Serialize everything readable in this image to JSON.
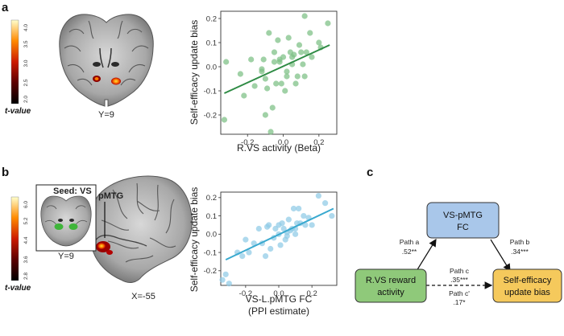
{
  "panel_a": {
    "letter": "a",
    "colorbar": {
      "title": "t-value",
      "ticks": [
        "4.0",
        "3.5",
        "3.0",
        "2.5",
        "2.0"
      ]
    },
    "brain_label": "Y=9"
  },
  "panel_b": {
    "letter": "b",
    "colorbar": {
      "title": "t-value",
      "ticks": [
        "6.0",
        "5.2",
        "4.4",
        "3.6",
        "2.8"
      ]
    },
    "seed_label": "Seed: VS",
    "inset_brain_label": "Y=9",
    "region_label": "pMTG",
    "brain_label": "X=-55"
  },
  "panel_c": {
    "letter": "c",
    "box_x": {
      "line1": "R.VS reward",
      "line2": "activity"
    },
    "box_m": {
      "line1": "VS-pMTG",
      "line2": "FC"
    },
    "box_y": {
      "line1": "Self-efficacy",
      "line2": "update bias"
    },
    "path_a": {
      "name": "Path a",
      "value": ".52**"
    },
    "path_b": {
      "name": "Path b",
      "value": ".34***"
    },
    "path_c": {
      "name": "Path c",
      "value": ".35***"
    },
    "path_c_prime": {
      "name": "Path c'",
      "value": ".17*"
    },
    "colors": {
      "x_fill": "#8fc97a",
      "m_fill": "#a9c7ea",
      "y_fill": "#f5c95c"
    }
  },
  "chart_data": [
    {
      "type": "scatter",
      "name": "scatter-a",
      "xlabel": "R.VS activity (Beta)",
      "ylabel": "Self-efficacy update bias",
      "xlim": [
        -0.35,
        0.3
      ],
      "ylim": [
        -0.28,
        0.23
      ],
      "xticks": [
        -0.2,
        0.0,
        0.2
      ],
      "xtick_labels": [
        "-0.2",
        "0.0",
        "0.2"
      ],
      "yticks": [
        -0.2,
        -0.1,
        0.0,
        0.1,
        0.2
      ],
      "ytick_labels": [
        "-0.2",
        "-0.1",
        "0.0",
        "0.1",
        "0.2"
      ],
      "point_color": "#7bbf84",
      "line_color": "#2e8b44",
      "fit_line": {
        "x": [
          -0.33,
          0.26
        ],
        "y": [
          -0.11,
          0.09
        ]
      },
      "points": {
        "x": [
          -0.33,
          -0.32,
          -0.24,
          -0.22,
          -0.18,
          -0.16,
          -0.12,
          -0.11,
          -0.1,
          -0.08,
          -0.07,
          -0.06,
          -0.05,
          -0.05,
          -0.04,
          -0.03,
          -0.02,
          -0.02,
          -0.01,
          0.0,
          0.01,
          0.02,
          0.02,
          0.03,
          0.04,
          0.05,
          0.06,
          0.07,
          0.08,
          0.09,
          0.1,
          0.11,
          0.12,
          0.12,
          0.13,
          0.15,
          0.16,
          0.2,
          0.21,
          0.25,
          -0.12,
          -0.09,
          0.05,
          -0.1
        ],
        "y": [
          -0.22,
          0.02,
          -0.03,
          -0.12,
          0.03,
          -0.08,
          -0.02,
          0.03,
          -0.05,
          0.14,
          -0.27,
          -0.17,
          0.02,
          0.06,
          -0.07,
          0.11,
          0.03,
          0.02,
          -0.07,
          0.04,
          -0.1,
          -0.02,
          -0.04,
          0.12,
          0.06,
          0.01,
          0.05,
          -0.07,
          -0.04,
          0.09,
          0.06,
          0.01,
          0.21,
          -0.04,
          0.06,
          0.14,
          0.04,
          0.1,
          0.08,
          0.18,
          -0.01,
          -0.09,
          0.04,
          -0.2
        ]
      }
    },
    {
      "type": "scatter",
      "name": "scatter-b",
      "xlabel": "VS-L.pMTG FC",
      "xlabel2": "(PPI estimate)",
      "ylabel": "Self-efficacy update bias",
      "xlim": [
        -0.35,
        0.35
      ],
      "ylim": [
        -0.28,
        0.23
      ],
      "xticks": [
        -0.2,
        0.0,
        0.2
      ],
      "xtick_labels": [
        "-0.2",
        "0.0",
        "0.2"
      ],
      "yticks": [
        -0.2,
        -0.1,
        0.0,
        0.1,
        0.2
      ],
      "ytick_labels": [
        "-0.2",
        "-0.1",
        "0.0",
        "0.1",
        "0.2"
      ],
      "point_color": "#8fcbe6",
      "line_color": "#39a9cf",
      "fit_line": {
        "x": [
          -0.32,
          0.33
        ],
        "y": [
          -0.14,
          0.14
        ]
      },
      "points": {
        "x": [
          -0.34,
          -0.32,
          -0.3,
          -0.25,
          -0.22,
          -0.2,
          -0.18,
          -0.15,
          -0.12,
          -0.1,
          -0.08,
          -0.06,
          -0.05,
          -0.03,
          -0.02,
          0.0,
          0.01,
          0.02,
          0.03,
          0.04,
          0.05,
          0.06,
          0.07,
          0.08,
          0.09,
          0.1,
          0.11,
          0.12,
          0.13,
          0.15,
          0.16,
          0.18,
          0.2,
          0.24,
          0.28,
          0.32,
          -0.07,
          0.0,
          0.05,
          0.1
        ],
        "y": [
          -0.25,
          -0.22,
          -0.27,
          -0.1,
          -0.12,
          -0.03,
          -0.1,
          -0.05,
          0.03,
          -0.05,
          -0.12,
          0.05,
          -0.08,
          -0.02,
          0.03,
          0.0,
          -0.06,
          0.06,
          0.03,
          -0.03,
          0.01,
          0.08,
          0.02,
          0.03,
          0.14,
          0.03,
          0.06,
          0.14,
          0.06,
          0.1,
          0.05,
          0.09,
          0.05,
          0.21,
          0.17,
          0.1,
          0.04,
          0.05,
          -0.01,
          0.0
        ]
      }
    }
  ]
}
